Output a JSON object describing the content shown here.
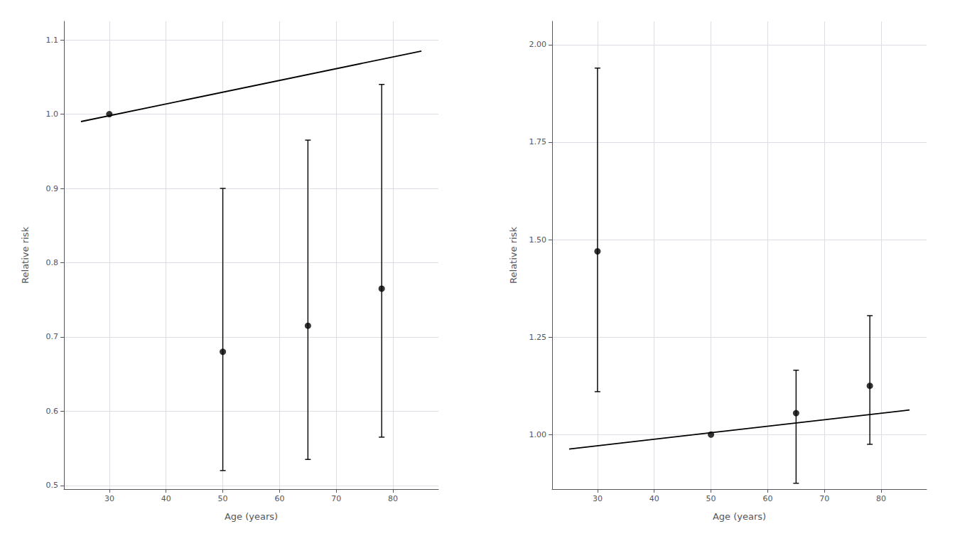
{
  "chart_data": [
    {
      "type": "scatter",
      "xlabel": "Age (years)",
      "ylabel": "Relative risk",
      "xlim": [
        22,
        88
      ],
      "xticks": [
        30,
        40,
        50,
        60,
        70,
        80
      ],
      "ylim": [
        0.495,
        1.125
      ],
      "yticks": [
        0.5,
        0.6,
        0.7,
        0.8,
        0.9,
        {
          "value": 1.0,
          "label": "1.0"
        },
        1.1
      ],
      "grid": true,
      "series": [
        {
          "type": "scatter",
          "color": "#000000",
          "x": [
            30,
            50,
            65,
            78
          ],
          "values": [
            1.0,
            0.68,
            0.715,
            0.765
          ],
          "ci_low": [
            1.0,
            0.52,
            0.535,
            0.565
          ],
          "ci_high": [
            1.0,
            0.9,
            0.965,
            1.04
          ]
        },
        {
          "type": "line",
          "color": "#000000",
          "x": [
            25,
            85
          ],
          "values": [
            0.99,
            1.085
          ]
        }
      ]
    },
    {
      "type": "scatter",
      "xlabel": "Age (years)",
      "ylabel": "Relative risk",
      "xlim": [
        22,
        88
      ],
      "xticks": [
        30,
        40,
        50,
        60,
        70,
        80
      ],
      "ylim": [
        0.86,
        2.06
      ],
      "yticks": [
        {
          "value": 1.0,
          "label": "1.00"
        },
        {
          "value": 1.25,
          "label": "1.25"
        },
        {
          "value": 1.5,
          "label": "1.50"
        },
        {
          "value": 1.75,
          "label": "1.75"
        },
        {
          "value": 2.0,
          "label": "2.00"
        }
      ],
      "grid": true,
      "series": [
        {
          "type": "scatter",
          "color": "#000000",
          "x": [
            30,
            50,
            65,
            78
          ],
          "values": [
            1.47,
            1.0,
            1.055,
            1.125
          ],
          "ci_low": [
            1.11,
            1.0,
            0.875,
            0.975
          ],
          "ci_high": [
            1.94,
            1.0,
            1.165,
            1.305
          ]
        },
        {
          "type": "line",
          "color": "#000000",
          "x": [
            25,
            85
          ],
          "values": [
            0.963,
            1.063
          ]
        }
      ]
    }
  ]
}
